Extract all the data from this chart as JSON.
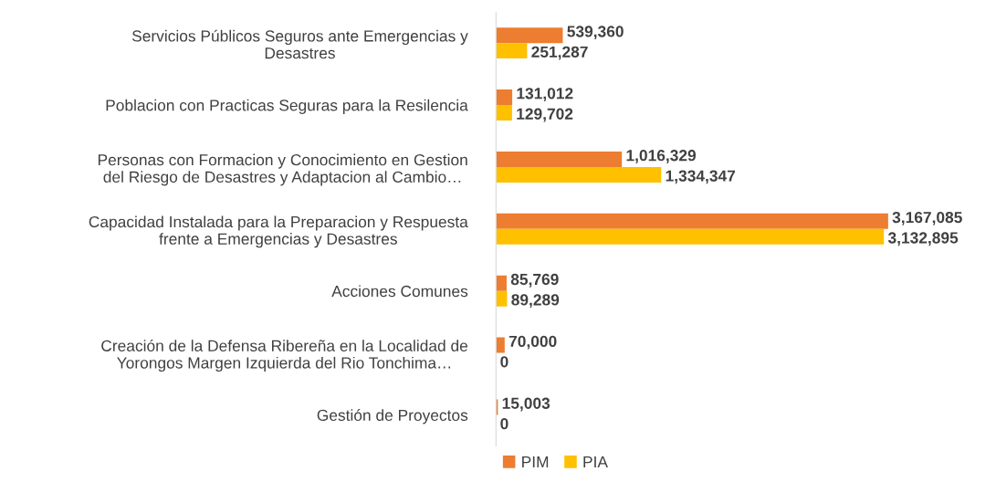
{
  "chart_data": {
    "type": "bar",
    "orientation": "horizontal",
    "grid": false,
    "legend": "bottom",
    "categories": [
      "Servicios Públicos Seguros ante Emergencias y\nDesastres",
      "Poblacion con Practicas Seguras para la Resilencia",
      "Personas con Formacion y Conocimiento en Gestion\ndel Riesgo de Desastres y Adaptacion al Cambio…",
      "Capacidad Instalada para la Preparacion y Respuesta\nfrente a Emergencias y Desastres",
      "Acciones Comunes",
      "Creación de la Defensa Ribereña en la Localidad de\nYorongos Margen Izquierda del Rio Tonchima…",
      "Gestión de Proyectos"
    ],
    "series": [
      {
        "name": "PIM",
        "color": "#ed7d31",
        "values": [
          539360,
          131012,
          1016329,
          3167085,
          85769,
          70000,
          15003
        ],
        "value_labels": [
          "539,360",
          "131,012",
          "1,016,329",
          "3,167,085",
          "85,769",
          "70,000",
          "15,003"
        ]
      },
      {
        "name": "PIA",
        "color": "#ffc000",
        "values": [
          251287,
          129702,
          1334347,
          3132895,
          89289,
          0,
          0
        ],
        "value_labels": [
          "251,287",
          "129,702",
          "1,334,347",
          "3,132,895",
          "89,289",
          "0",
          "0"
        ]
      }
    ]
  }
}
